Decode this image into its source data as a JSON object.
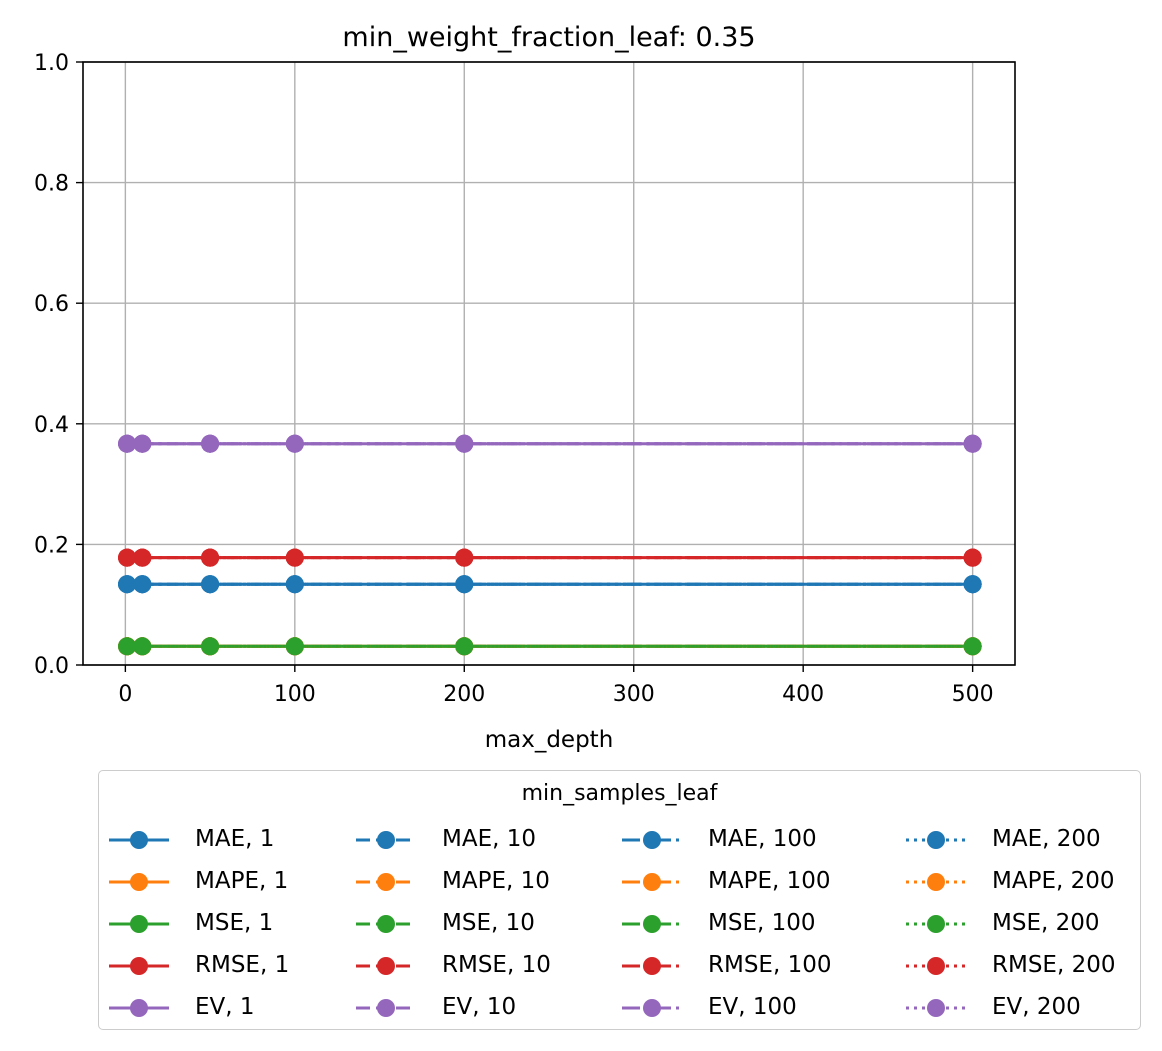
{
  "chart_data": {
    "type": "line",
    "title": "min_weight_fraction_leaf: 0.35",
    "xlabel": "max_depth",
    "ylabel": "",
    "xlim": [
      -25,
      525
    ],
    "ylim": [
      0,
      1.0
    ],
    "xticks": [
      0,
      100,
      200,
      300,
      400,
      500
    ],
    "yticks": [
      0.0,
      0.2,
      0.4,
      0.6,
      0.8,
      1.0
    ],
    "ytick_labels": [
      "0.0",
      "0.2",
      "0.4",
      "0.6",
      "0.8",
      "1.0"
    ],
    "grid": true,
    "x": [
      1,
      10,
      50,
      100,
      200,
      500
    ],
    "legend_title": "min_samples_leaf",
    "legend_placement": "below",
    "colors": {
      "MAE": "#1f77b4",
      "MAPE": "#ff7f0e",
      "MSE": "#2ca02c",
      "RMSE": "#d62728",
      "EV": "#9467bd"
    },
    "series": [
      {
        "name": "MAE, 1",
        "metric": "MAE",
        "style": "solid",
        "values": [
          0.134,
          0.134,
          0.134,
          0.134,
          0.134,
          0.134
        ]
      },
      {
        "name": "MAPE, 1",
        "metric": "MAPE",
        "style": "solid",
        "values": [
          0.031,
          0.031,
          0.031,
          0.031,
          0.031,
          0.031
        ]
      },
      {
        "name": "MSE, 1",
        "metric": "MSE",
        "style": "solid",
        "values": [
          0.031,
          0.031,
          0.031,
          0.031,
          0.031,
          0.031
        ]
      },
      {
        "name": "RMSE, 1",
        "metric": "RMSE",
        "style": "solid",
        "values": [
          0.178,
          0.178,
          0.178,
          0.178,
          0.178,
          0.178
        ]
      },
      {
        "name": "EV, 1",
        "metric": "EV",
        "style": "solid",
        "values": [
          0.367,
          0.367,
          0.367,
          0.367,
          0.367,
          0.367
        ]
      },
      {
        "name": "MAE, 10",
        "metric": "MAE",
        "style": "dashed",
        "values": [
          0.134,
          0.134,
          0.134,
          0.134,
          0.134,
          0.134
        ]
      },
      {
        "name": "MAPE, 10",
        "metric": "MAPE",
        "style": "dashed",
        "values": [
          0.031,
          0.031,
          0.031,
          0.031,
          0.031,
          0.031
        ]
      },
      {
        "name": "MSE, 10",
        "metric": "MSE",
        "style": "dashed",
        "values": [
          0.031,
          0.031,
          0.031,
          0.031,
          0.031,
          0.031
        ]
      },
      {
        "name": "RMSE, 10",
        "metric": "RMSE",
        "style": "dashed",
        "values": [
          0.178,
          0.178,
          0.178,
          0.178,
          0.178,
          0.178
        ]
      },
      {
        "name": "EV, 10",
        "metric": "EV",
        "style": "dashed",
        "values": [
          0.367,
          0.367,
          0.367,
          0.367,
          0.367,
          0.367
        ]
      },
      {
        "name": "MAE, 100",
        "metric": "MAE",
        "style": "dashdot",
        "values": [
          0.134,
          0.134,
          0.134,
          0.134,
          0.134,
          0.134
        ]
      },
      {
        "name": "MAPE, 100",
        "metric": "MAPE",
        "style": "dashdot",
        "values": [
          0.031,
          0.031,
          0.031,
          0.031,
          0.031,
          0.031
        ]
      },
      {
        "name": "MSE, 100",
        "metric": "MSE",
        "style": "dashdot",
        "values": [
          0.031,
          0.031,
          0.031,
          0.031,
          0.031,
          0.031
        ]
      },
      {
        "name": "RMSE, 100",
        "metric": "RMSE",
        "style": "dashdot",
        "values": [
          0.178,
          0.178,
          0.178,
          0.178,
          0.178,
          0.178
        ]
      },
      {
        "name": "EV, 100",
        "metric": "EV",
        "style": "dashdot",
        "values": [
          0.367,
          0.367,
          0.367,
          0.367,
          0.367,
          0.367
        ]
      },
      {
        "name": "MAE, 200",
        "metric": "MAE",
        "style": "dotted",
        "values": [
          0.134,
          0.134,
          0.134,
          0.134,
          0.134,
          0.134
        ]
      },
      {
        "name": "MAPE, 200",
        "metric": "MAPE",
        "style": "dotted",
        "values": [
          0.031,
          0.031,
          0.031,
          0.031,
          0.031,
          0.031
        ]
      },
      {
        "name": "MSE, 200",
        "metric": "MSE",
        "style": "dotted",
        "values": [
          0.031,
          0.031,
          0.031,
          0.031,
          0.031,
          0.031
        ]
      },
      {
        "name": "RMSE, 200",
        "metric": "RMSE",
        "style": "dotted",
        "values": [
          0.178,
          0.178,
          0.178,
          0.178,
          0.178,
          0.178
        ]
      },
      {
        "name": "EV, 200",
        "metric": "EV",
        "style": "dotted",
        "values": [
          0.367,
          0.367,
          0.367,
          0.367,
          0.367,
          0.367
        ]
      }
    ]
  }
}
